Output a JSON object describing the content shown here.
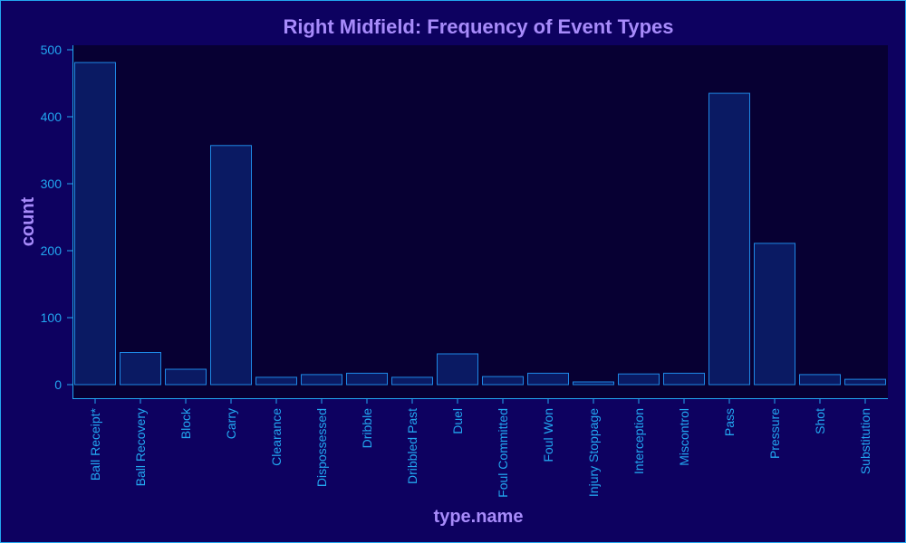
{
  "colors": {
    "page_background": "#0d0160",
    "plot_background": "#070033",
    "bar_fill": "#0a1a63",
    "bar_stroke": "#1e88e5",
    "axis": "#22a7f0",
    "text_title": "#a78bfa"
  },
  "chart_data": {
    "type": "bar",
    "title": "Right Midfield: Frequency of Event Types",
    "xlabel": "type.name",
    "ylabel": "count",
    "ylim": [
      0,
      500
    ],
    "yticks": [
      0,
      100,
      200,
      300,
      400,
      500
    ],
    "grid": false,
    "categories": [
      "Ball Receipt*",
      "Ball Recovery",
      "Block",
      "Carry",
      "Clearance",
      "Dispossessed",
      "Dribble",
      "Dribbled Past",
      "Duel",
      "Foul Committed",
      "Foul Won",
      "Injury Stoppage",
      "Interception",
      "Miscontrol",
      "Pass",
      "Pressure",
      "Shot",
      "Substitution"
    ],
    "values": [
      481,
      48,
      23,
      357,
      11,
      15,
      17,
      11,
      46,
      12,
      17,
      4,
      16,
      17,
      435,
      211,
      15,
      8
    ]
  }
}
